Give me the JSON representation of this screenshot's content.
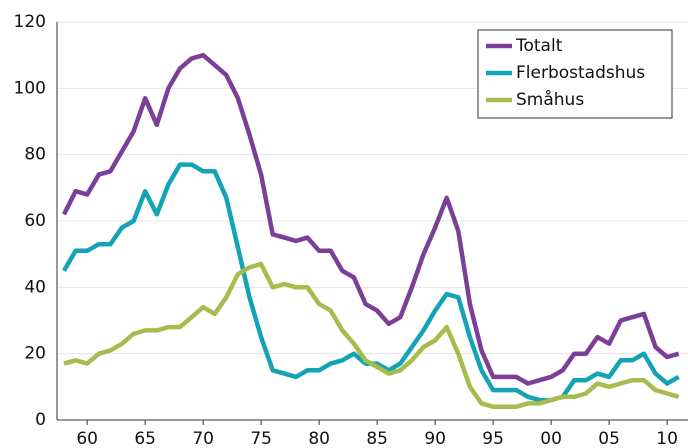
{
  "chart_data": {
    "type": "line",
    "x": [
      1958,
      1959,
      1960,
      1961,
      1962,
      1963,
      1964,
      1965,
      1966,
      1967,
      1968,
      1969,
      1970,
      1971,
      1972,
      1973,
      1974,
      1975,
      1976,
      1977,
      1978,
      1979,
      1980,
      1981,
      1982,
      1983,
      1984,
      1985,
      1986,
      1987,
      1988,
      1989,
      1990,
      1991,
      1992,
      1993,
      1994,
      1995,
      1996,
      1997,
      1998,
      1999,
      2000,
      2001,
      2002,
      2003,
      2004,
      2005,
      2006,
      2007,
      2008,
      2009,
      2010,
      2011
    ],
    "series": [
      {
        "name": "Totalt",
        "color": "#7b3f98",
        "values": [
          62,
          69,
          68,
          74,
          75,
          81,
          87,
          97,
          89,
          100,
          106,
          109,
          110,
          107,
          104,
          97,
          86,
          74,
          56,
          55,
          54,
          55,
          51,
          51,
          45,
          43,
          35,
          33,
          29,
          31,
          40,
          50,
          58,
          67,
          57,
          35,
          21,
          13,
          13,
          13,
          11,
          12,
          13,
          15,
          20,
          20,
          25,
          23,
          30,
          31,
          32,
          22,
          19,
          20
        ]
      },
      {
        "name": "Flerbostadshus",
        "color": "#12a3b5",
        "values": [
          45,
          51,
          51,
          53,
          53,
          58,
          60,
          69,
          62,
          71,
          77,
          77,
          75,
          75,
          67,
          52,
          37,
          25,
          15,
          14,
          13,
          15,
          15,
          17,
          18,
          20,
          17,
          17,
          15,
          17,
          22,
          27,
          33,
          38,
          37,
          25,
          15,
          9,
          9,
          9,
          7,
          6,
          6,
          7,
          12,
          12,
          14,
          13,
          18,
          18,
          20,
          14,
          11,
          13
        ]
      },
      {
        "name": "Småhus",
        "color": "#a6bc4f",
        "values": [
          17,
          18,
          17,
          20,
          21,
          23,
          26,
          27,
          27,
          28,
          28,
          31,
          34,
          32,
          37,
          44,
          46,
          47,
          40,
          41,
          40,
          40,
          35,
          33,
          27,
          23,
          18,
          16,
          14,
          15,
          18,
          22,
          24,
          28,
          20,
          10,
          5,
          4,
          4,
          4,
          5,
          5,
          6,
          7,
          7,
          8,
          11,
          10,
          11,
          12,
          12,
          9,
          8,
          7
        ]
      }
    ],
    "xlim": [
      1957.4,
      2011.8
    ],
    "xticks": [
      {
        "value": 1960,
        "label": "60"
      },
      {
        "value": 1965,
        "label": "65"
      },
      {
        "value": 1970,
        "label": "70"
      },
      {
        "value": 1975,
        "label": "75"
      },
      {
        "value": 1980,
        "label": "80"
      },
      {
        "value": 1985,
        "label": "85"
      },
      {
        "value": 1990,
        "label": "90"
      },
      {
        "value": 1995,
        "label": "95"
      },
      {
        "value": 2000,
        "label": "00"
      },
      {
        "value": 2005,
        "label": "05"
      },
      {
        "value": 2010,
        "label": "10"
      }
    ],
    "ylim": [
      0,
      120
    ],
    "yticks": [
      0,
      20,
      40,
      60,
      80,
      100,
      120
    ],
    "grid": true,
    "legend": "upper right"
  }
}
